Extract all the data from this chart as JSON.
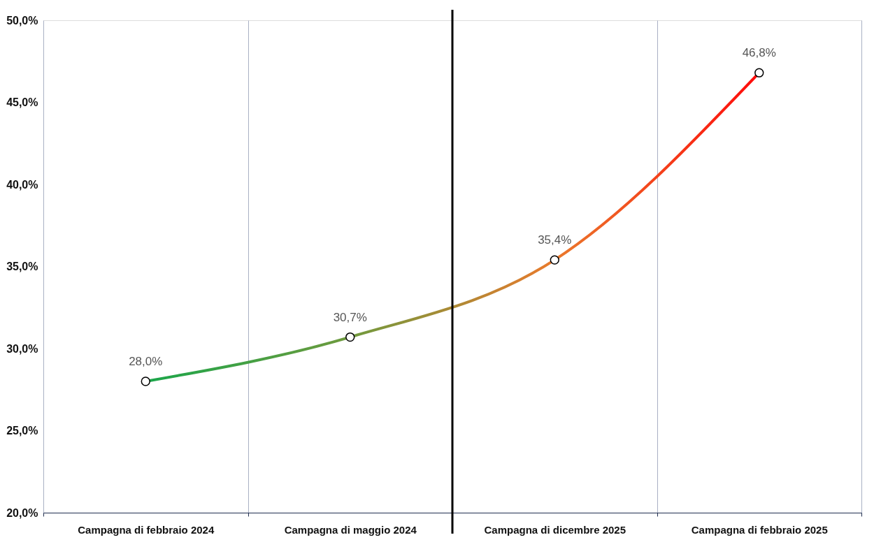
{
  "chart_data": {
    "type": "line",
    "categories": [
      "Campagna di febbraio 2024",
      "Campagna di maggio 2024",
      "Campagna di dicembre 2025",
      "Campagna di febbraio 2025"
    ],
    "series": [
      {
        "colors": [
          "#1aa64a",
          "#6f9a3e",
          "#ea7a2c",
          "#ff0a0a"
        ],
        "values": [
          28.0,
          30.7,
          35.4,
          46.8
        ],
        "value_labels": [
          "28,0%",
          "30,7%",
          "35,4%",
          "46,8%"
        ]
      }
    ],
    "ylim": [
      20,
      50
    ],
    "yticks": [
      {
        "value": 20,
        "label": "20,0%"
      },
      {
        "value": 25,
        "label": "25,0%"
      },
      {
        "value": 30,
        "label": "30,0%"
      },
      {
        "value": 35,
        "label": "35,0%"
      },
      {
        "value": 40,
        "label": "40,0%"
      },
      {
        "value": 45,
        "label": "45,0%"
      },
      {
        "value": 50,
        "label": "50,0%"
      }
    ],
    "ref_lines": [
      {
        "axis": "x",
        "value": "Campagna di dicembre 2025",
        "color": "#000000"
      }
    ],
    "grid": "x",
    "marker": "circle",
    "line_style": "solid"
  }
}
